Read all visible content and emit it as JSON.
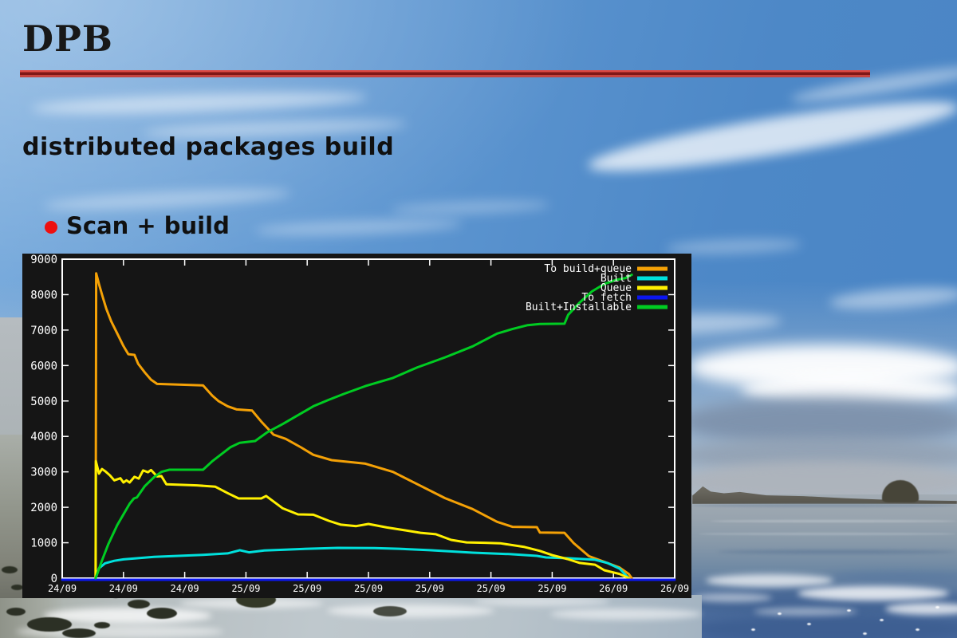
{
  "slide": {
    "title": "DPB",
    "subtitle": "distributed packages build",
    "bullet_label": "Scan + build",
    "bullet_color": "#EE1010",
    "rule_color_light": "#DD4A45",
    "rule_color_dark": "#801716"
  },
  "chart_data": {
    "type": "line",
    "title": "",
    "background": "#151515",
    "axis_color": "#FFFFFF",
    "grid": false,
    "legend_position": "top-right-inside",
    "x_axis": {
      "kind": "time",
      "tick_labels": [
        "24/09",
        "24/09",
        "24/09",
        "25/09",
        "25/09",
        "25/09",
        "25/09",
        "25/09",
        "25/09",
        "26/09",
        "26/09"
      ],
      "range_ticks": [
        0,
        10
      ]
    },
    "y_axis": {
      "min": 0,
      "max": 9000,
      "tick_step": 1000,
      "tick_labels": [
        "0",
        "1000",
        "2000",
        "3000",
        "4000",
        "5000",
        "6000",
        "7000",
        "8000",
        "9000"
      ]
    },
    "series": [
      {
        "name": "To build+queue",
        "color": "#F4A106",
        "points": [
          [
            0.545,
            0
          ],
          [
            0.555,
            8600
          ],
          [
            0.6,
            8300
          ],
          [
            0.65,
            8000
          ],
          [
            0.72,
            7600
          ],
          [
            0.8,
            7250
          ],
          [
            0.9,
            6900
          ],
          [
            1.0,
            6550
          ],
          [
            1.08,
            6320
          ],
          [
            1.18,
            6300
          ],
          [
            1.24,
            6050
          ],
          [
            1.35,
            5800
          ],
          [
            1.45,
            5600
          ],
          [
            1.55,
            5480
          ],
          [
            1.75,
            5470
          ],
          [
            2.3,
            5440
          ],
          [
            2.45,
            5150
          ],
          [
            2.55,
            5000
          ],
          [
            2.7,
            4850
          ],
          [
            2.85,
            4760
          ],
          [
            3.1,
            4730
          ],
          [
            3.25,
            4420
          ],
          [
            3.45,
            4050
          ],
          [
            3.65,
            3930
          ],
          [
            3.9,
            3690
          ],
          [
            4.1,
            3480
          ],
          [
            4.4,
            3330
          ],
          [
            4.95,
            3230
          ],
          [
            5.4,
            3000
          ],
          [
            5.8,
            2650
          ],
          [
            6.25,
            2260
          ],
          [
            6.7,
            1950
          ],
          [
            7.1,
            1590
          ],
          [
            7.35,
            1450
          ],
          [
            7.75,
            1440
          ],
          [
            7.8,
            1290
          ],
          [
            8.2,
            1280
          ],
          [
            8.35,
            990
          ],
          [
            8.6,
            620
          ],
          [
            8.9,
            430
          ],
          [
            9.1,
            300
          ],
          [
            9.25,
            120
          ],
          [
            9.3,
            0
          ]
        ]
      },
      {
        "name": "Built",
        "color": "#00E0DC",
        "points": [
          [
            0.545,
            0
          ],
          [
            0.6,
            280
          ],
          [
            0.7,
            420
          ],
          [
            0.85,
            490
          ],
          [
            1.0,
            530
          ],
          [
            1.2,
            560
          ],
          [
            1.5,
            600
          ],
          [
            1.9,
            630
          ],
          [
            2.3,
            660
          ],
          [
            2.7,
            700
          ],
          [
            2.9,
            790
          ],
          [
            3.05,
            730
          ],
          [
            3.3,
            780
          ],
          [
            3.6,
            800
          ],
          [
            4.0,
            830
          ],
          [
            4.5,
            855
          ],
          [
            5.1,
            850
          ],
          [
            5.5,
            830
          ],
          [
            6.0,
            790
          ],
          [
            6.7,
            720
          ],
          [
            7.3,
            680
          ],
          [
            7.75,
            630
          ],
          [
            7.9,
            585
          ],
          [
            8.3,
            560
          ],
          [
            8.7,
            520
          ],
          [
            8.9,
            430
          ],
          [
            9.1,
            270
          ],
          [
            9.25,
            0
          ]
        ]
      },
      {
        "name": "Queue",
        "color": "#FFF000",
        "points": [
          [
            0.545,
            0
          ],
          [
            0.55,
            3300
          ],
          [
            0.6,
            2950
          ],
          [
            0.65,
            3080
          ],
          [
            0.7,
            3020
          ],
          [
            0.78,
            2900
          ],
          [
            0.85,
            2760
          ],
          [
            0.95,
            2820
          ],
          [
            1.0,
            2700
          ],
          [
            1.05,
            2760
          ],
          [
            1.1,
            2700
          ],
          [
            1.18,
            2860
          ],
          [
            1.25,
            2810
          ],
          [
            1.32,
            3040
          ],
          [
            1.4,
            2990
          ],
          [
            1.45,
            3050
          ],
          [
            1.55,
            2870
          ],
          [
            1.62,
            2880
          ],
          [
            1.7,
            2650
          ],
          [
            2.2,
            2620
          ],
          [
            2.5,
            2580
          ],
          [
            2.7,
            2400
          ],
          [
            2.88,
            2250
          ],
          [
            3.25,
            2250
          ],
          [
            3.33,
            2320
          ],
          [
            3.6,
            1970
          ],
          [
            3.85,
            1800
          ],
          [
            4.1,
            1790
          ],
          [
            4.35,
            1620
          ],
          [
            4.55,
            1510
          ],
          [
            4.8,
            1470
          ],
          [
            5.0,
            1530
          ],
          [
            5.3,
            1430
          ],
          [
            5.6,
            1350
          ],
          [
            5.85,
            1280
          ],
          [
            6.1,
            1240
          ],
          [
            6.35,
            1080
          ],
          [
            6.6,
            1010
          ],
          [
            6.9,
            1000
          ],
          [
            7.15,
            985
          ],
          [
            7.55,
            880
          ],
          [
            7.8,
            770
          ],
          [
            8.0,
            650
          ],
          [
            8.25,
            540
          ],
          [
            8.45,
            430
          ],
          [
            8.7,
            380
          ],
          [
            8.85,
            225
          ],
          [
            9.1,
            120
          ],
          [
            9.25,
            0
          ]
        ]
      },
      {
        "name": "To fetch",
        "color": "#0B16F0",
        "points": [
          [
            0,
            0
          ],
          [
            10,
            0
          ]
        ]
      },
      {
        "name": "Built+Installable",
        "color": "#00CC22",
        "points": [
          [
            0.545,
            0
          ],
          [
            0.65,
            500
          ],
          [
            0.75,
            950
          ],
          [
            0.9,
            1500
          ],
          [
            1.0,
            1800
          ],
          [
            1.1,
            2100
          ],
          [
            1.17,
            2250
          ],
          [
            1.22,
            2280
          ],
          [
            1.35,
            2600
          ],
          [
            1.5,
            2850
          ],
          [
            1.62,
            3000
          ],
          [
            1.75,
            3060
          ],
          [
            2.3,
            3060
          ],
          [
            2.45,
            3300
          ],
          [
            2.6,
            3500
          ],
          [
            2.75,
            3700
          ],
          [
            2.9,
            3820
          ],
          [
            3.15,
            3870
          ],
          [
            3.35,
            4120
          ],
          [
            3.6,
            4350
          ],
          [
            3.85,
            4600
          ],
          [
            4.1,
            4850
          ],
          [
            4.35,
            5030
          ],
          [
            4.6,
            5200
          ],
          [
            4.95,
            5420
          ],
          [
            5.4,
            5650
          ],
          [
            5.8,
            5950
          ],
          [
            6.25,
            6230
          ],
          [
            6.7,
            6540
          ],
          [
            7.1,
            6900
          ],
          [
            7.35,
            7030
          ],
          [
            7.6,
            7140
          ],
          [
            7.8,
            7170
          ],
          [
            8.2,
            7180
          ],
          [
            8.26,
            7430
          ],
          [
            8.45,
            7780
          ],
          [
            8.65,
            8090
          ],
          [
            8.85,
            8300
          ],
          [
            9.05,
            8420
          ],
          [
            9.2,
            8470
          ],
          [
            9.3,
            8560
          ]
        ]
      }
    ]
  }
}
